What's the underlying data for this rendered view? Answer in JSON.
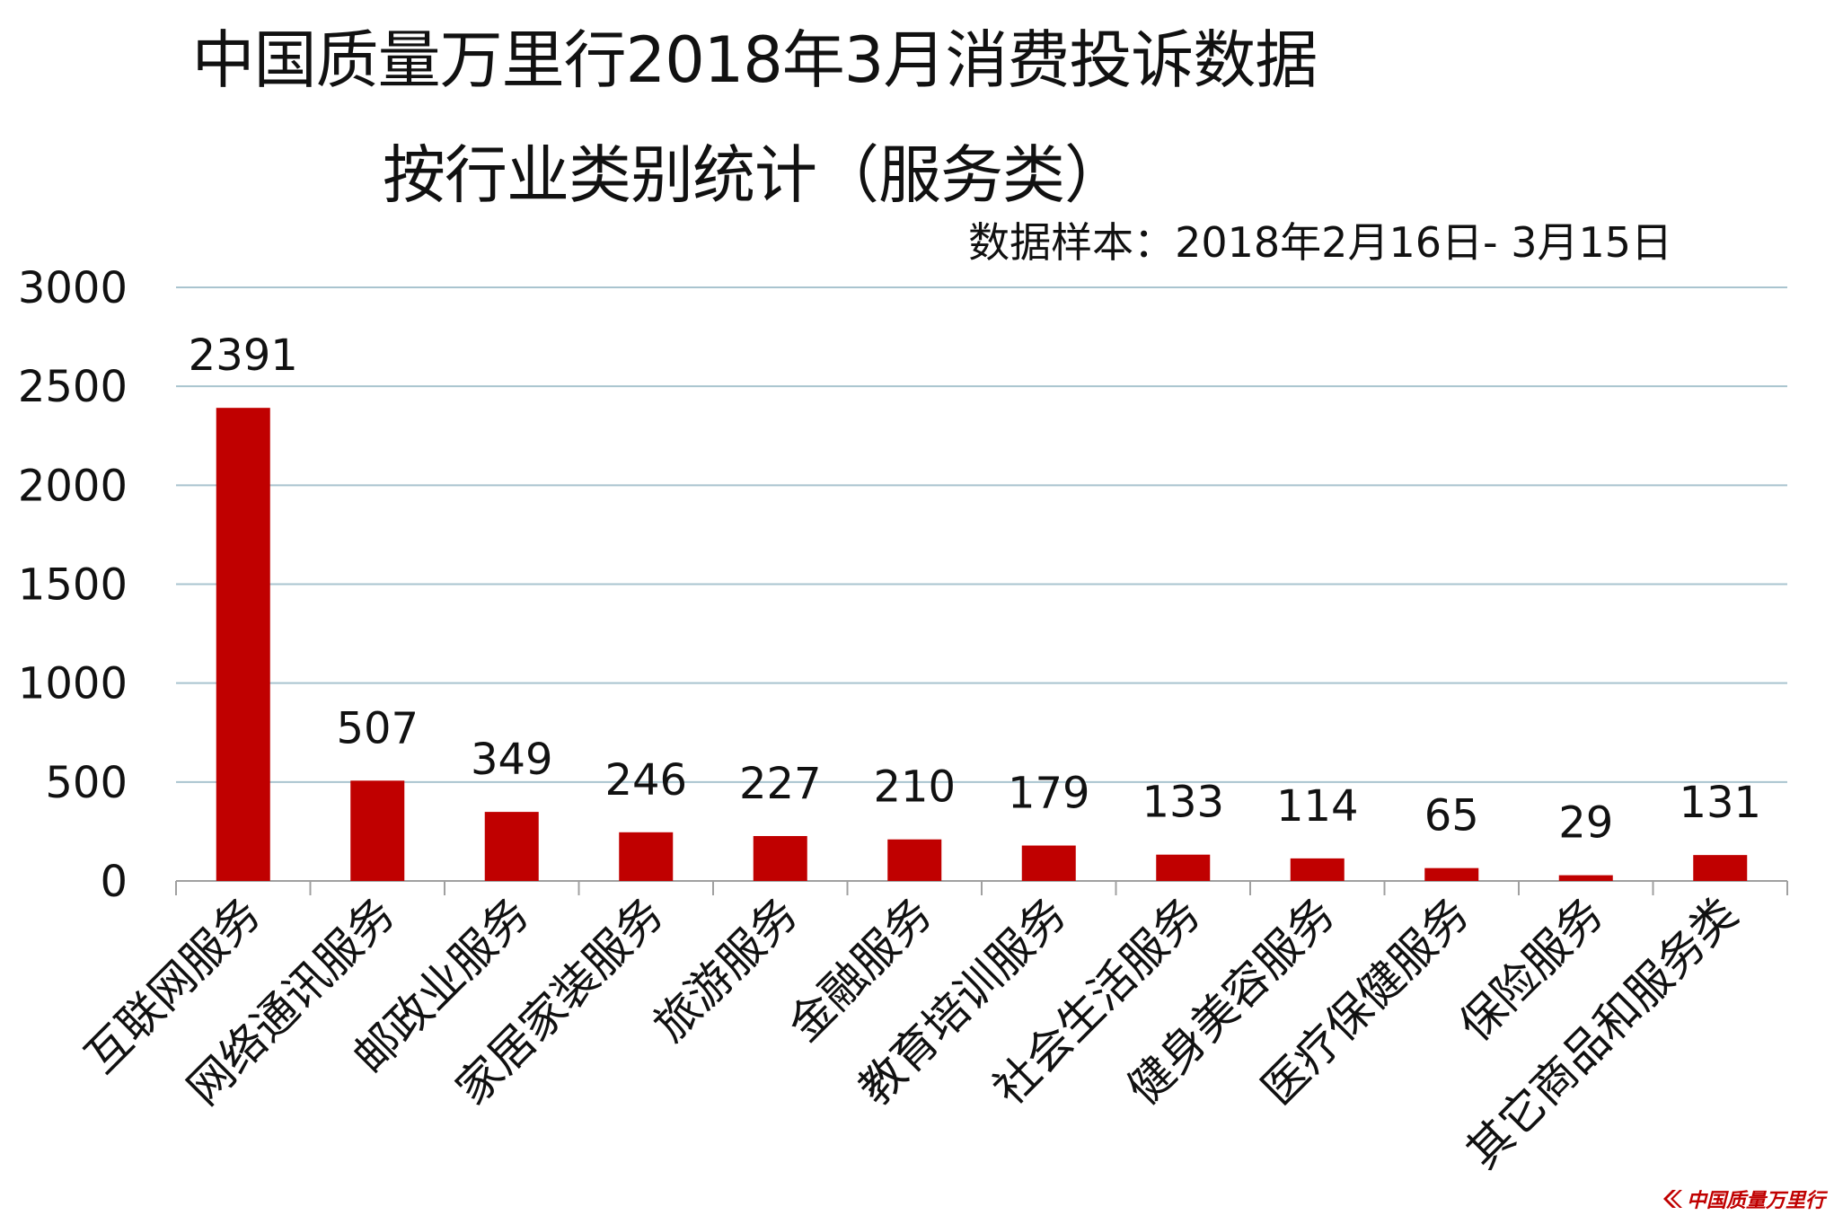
{
  "header": {
    "title_line1": "中国质量万里行2018年3月消费投诉数据",
    "title_line2": "按行业类别统计（服务类）",
    "subtitle": "数据样本：2018年2月16日- 3月15日"
  },
  "logo": {
    "text": "中国质量万里行",
    "icon": "chevron-logo-icon",
    "color": "#c00000"
  },
  "chart_data": {
    "type": "bar",
    "title": "中国质量万里行2018年3月消费投诉数据 按行业类别统计（服务类）",
    "subtitle": "数据样本：2018年2月16日- 3月15日",
    "categories": [
      "互联网服务",
      "网络通讯服务",
      "邮政业服务",
      "家居家装服务",
      "旅游服务",
      "金融服务",
      "教育培训服务",
      "社会生活服务",
      "健身美容服务",
      "医疗保健服务",
      "保险服务",
      "其它商品和服务类"
    ],
    "values": [
      2391,
      507,
      349,
      246,
      227,
      210,
      179,
      133,
      114,
      65,
      29,
      131
    ],
    "ylim": [
      0,
      3000
    ],
    "yticks": [
      0,
      500,
      1000,
      1500,
      2000,
      2500,
      3000
    ],
    "grid": true,
    "legend": "none",
    "bar_color": "#c00000",
    "grid_color": "#a9c4cf",
    "axis_color": "#a0a0a0"
  }
}
